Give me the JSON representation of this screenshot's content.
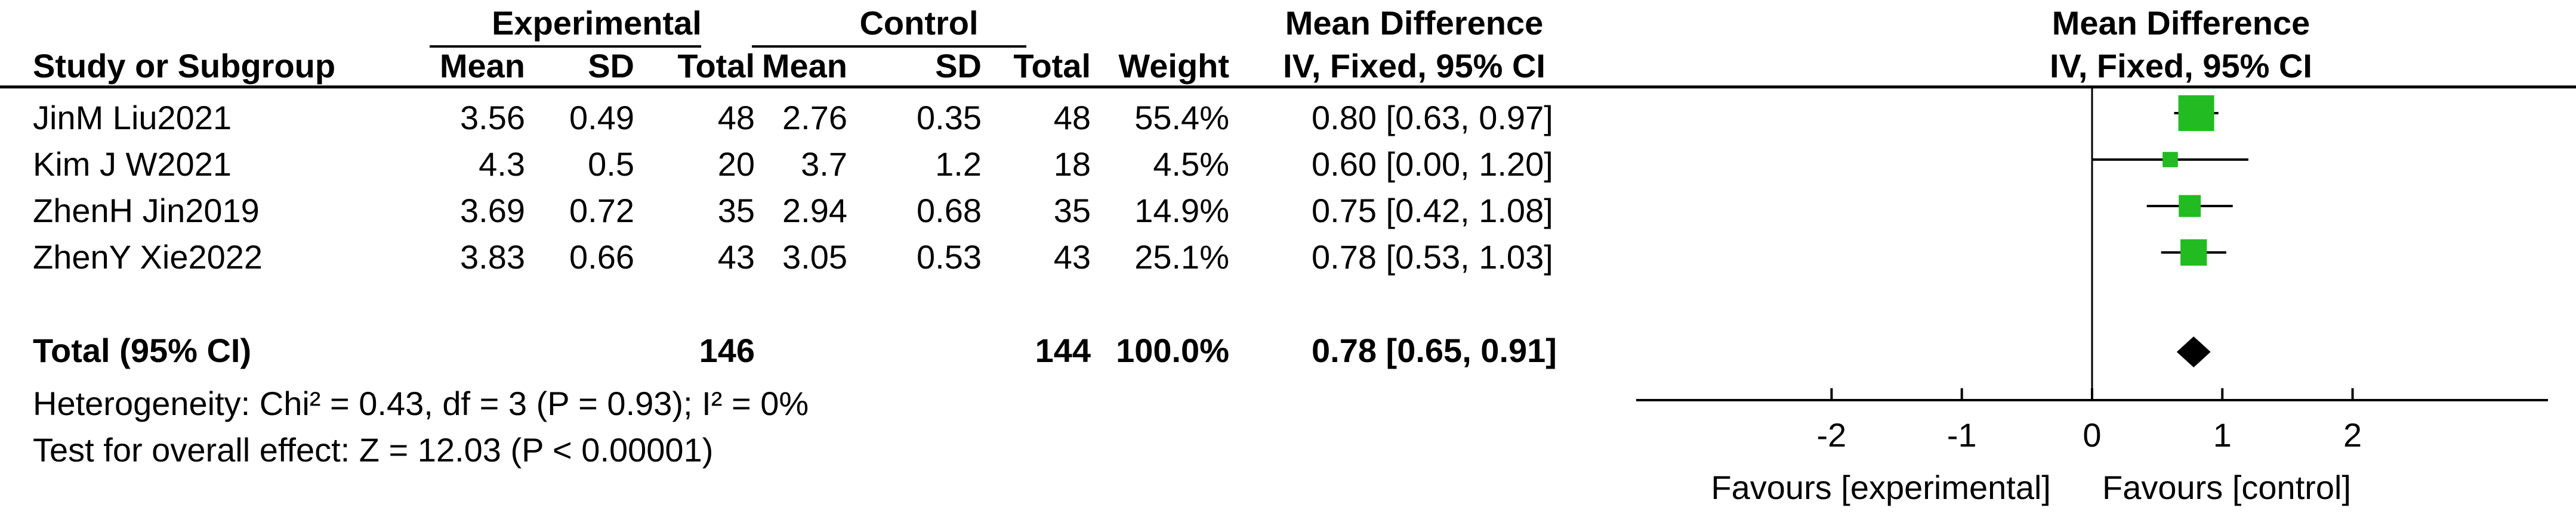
{
  "chart_data": {
    "type": "forest",
    "group_headers": {
      "experimental": "Experimental",
      "control": "Control",
      "effect": "Mean Difference",
      "plot": "Mean Difference"
    },
    "columns": {
      "study": "Study or Subgroup",
      "exp_mean": "Mean",
      "exp_sd": "SD",
      "exp_total": "Total",
      "ctl_mean": "Mean",
      "ctl_sd": "SD",
      "ctl_total": "Total",
      "weight": "Weight",
      "effect": "IV, Fixed, 95% CI",
      "plot": "IV, Fixed, 95% CI"
    },
    "studies": [
      {
        "name": "JinM Liu2021",
        "exp_mean": "3.56",
        "exp_sd": "0.49",
        "exp_total": "48",
        "ctl_mean": "2.76",
        "ctl_sd": "0.35",
        "ctl_total": "48",
        "weight": "55.4%",
        "ci_text": "0.80 [0.63, 0.97]",
        "md": 0.8,
        "lo": 0.63,
        "hi": 0.97,
        "w": 55.4
      },
      {
        "name": "Kim J W2021",
        "exp_mean": "4.3",
        "exp_sd": "0.5",
        "exp_total": "20",
        "ctl_mean": "3.7",
        "ctl_sd": "1.2",
        "ctl_total": "18",
        "weight": "4.5%",
        "ci_text": "0.60 [0.00, 1.20]",
        "md": 0.6,
        "lo": 0.0,
        "hi": 1.2,
        "w": 4.5
      },
      {
        "name": "ZhenH Jin2019",
        "exp_mean": "3.69",
        "exp_sd": "0.72",
        "exp_total": "35",
        "ctl_mean": "2.94",
        "ctl_sd": "0.68",
        "ctl_total": "35",
        "weight": "14.9%",
        "ci_text": "0.75 [0.42, 1.08]",
        "md": 0.75,
        "lo": 0.42,
        "hi": 1.08,
        "w": 14.9
      },
      {
        "name": "ZhenY Xie2022",
        "exp_mean": "3.83",
        "exp_sd": "0.66",
        "exp_total": "43",
        "ctl_mean": "3.05",
        "ctl_sd": "0.53",
        "ctl_total": "43",
        "weight": "25.1%",
        "ci_text": "0.78 [0.53, 1.03]",
        "md": 0.78,
        "lo": 0.53,
        "hi": 1.03,
        "w": 25.1
      }
    ],
    "total": {
      "name": "Total (95% CI)",
      "exp_total": "146",
      "ctl_total": "144",
      "weight": "100.0%",
      "ci_text": "0.78 [0.65, 0.91]",
      "md": 0.78,
      "lo": 0.65,
      "hi": 0.91
    },
    "heterogeneity": "Heterogeneity: Chi² = 0.43, df = 3 (P = 0.93); I² = 0%",
    "overall_effect": "Test for overall effect: Z = 12.03 (P < 0.00001)",
    "x_axis": {
      "ticks": [
        -2,
        -1,
        0,
        1,
        2
      ],
      "tick_labels": [
        "-2",
        "-1",
        "0",
        "1",
        "2"
      ],
      "xlim": [
        -3.5,
        3.5
      ]
    },
    "favours_left": "Favours [experimental]",
    "favours_right": "Favours [control]",
    "colors": {
      "square": "#22bb22",
      "diamond": "#000000",
      "line": "#000000"
    }
  }
}
